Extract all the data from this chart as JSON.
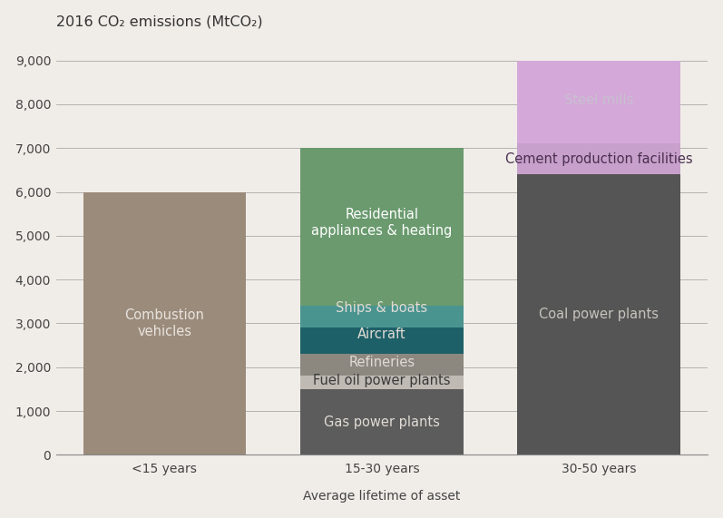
{
  "categories": [
    "<15 years",
    "15-30 years",
    "30-50 years"
  ],
  "title": "2016 CO₂ emissions (MtCO₂)",
  "xlabel": "Average lifetime of asset",
  "ylim": [
    0,
    9500
  ],
  "yticks": [
    0,
    1000,
    2000,
    3000,
    4000,
    5000,
    6000,
    7000,
    8000,
    9000
  ],
  "ytick_labels": [
    "0",
    "1,000",
    "2,000",
    "3,000",
    "4,000",
    "5,000",
    "6,000",
    "7,000",
    "8,000",
    "9,000"
  ],
  "segments": [
    {
      "label": "Combustion\nvehicles",
      "values": [
        6000,
        0,
        0
      ],
      "color": "#9b8b7b",
      "text_color": "#e8e4de",
      "text_y": [
        3000,
        null,
        null
      ]
    },
    {
      "label": "Gas power plants",
      "values": [
        0,
        1500,
        0
      ],
      "color": "#5c5c5c",
      "text_color": "#e0dbd4",
      "text_y": [
        null,
        750,
        null
      ]
    },
    {
      "label": "Fuel oil power plants",
      "values": [
        0,
        300,
        0
      ],
      "color": "#c0bab4",
      "text_color": "#3a3a3a",
      "text_y": [
        null,
        1700,
        null
      ]
    },
    {
      "label": "Refineries",
      "values": [
        0,
        500,
        0
      ],
      "color": "#8c8880",
      "text_color": "#e0dbd4",
      "text_y": [
        null,
        2100,
        null
      ]
    },
    {
      "label": "Aircraft",
      "values": [
        0,
        600,
        0
      ],
      "color": "#1e6068",
      "text_color": "#e0dbd4",
      "text_y": [
        null,
        2750,
        null
      ]
    },
    {
      "label": "Ships & boats",
      "values": [
        0,
        500,
        0
      ],
      "color": "#4a9490",
      "text_color": "#e0dbd4",
      "text_y": [
        null,
        3350,
        null
      ]
    },
    {
      "label": "Residential\nappliances & heating",
      "values": [
        0,
        3600,
        0
      ],
      "color": "#6a9a6e",
      "text_color": "#ffffff",
      "text_y": [
        null,
        5300,
        null
      ]
    },
    {
      "label": "Coal power plants",
      "values": [
        0,
        0,
        6400
      ],
      "color": "#555555",
      "text_color": "#c8c4be",
      "text_y": [
        null,
        null,
        3200
      ]
    },
    {
      "label": "Cement production facilities",
      "values": [
        0,
        0,
        700
      ],
      "color": "#c8a0cc",
      "text_color": "#4a3050",
      "text_y": [
        null,
        null,
        6750
      ]
    },
    {
      "label": "Steel mills",
      "values": [
        0,
        0,
        1900
      ],
      "color": "#d4a8d8",
      "text_color": "#c8c0d0",
      "text_y": [
        null,
        null,
        8100
      ]
    }
  ],
  "background_color": "#f0ede8",
  "bar_width": 0.75,
  "fontsize_title": 11.5,
  "fontsize_xlabel": 10,
  "fontsize_ticks": 10,
  "fontsize_segment": 10.5
}
